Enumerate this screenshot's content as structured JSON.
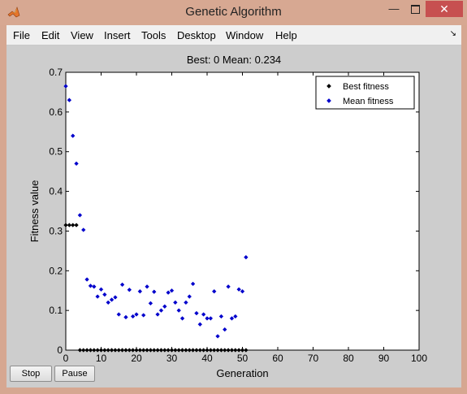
{
  "window": {
    "title": "Genetic Algorithm",
    "minimize_glyph": "—",
    "close_glyph": "✕"
  },
  "menu": {
    "items": [
      "File",
      "Edit",
      "View",
      "Insert",
      "Tools",
      "Desktop",
      "Window",
      "Help"
    ],
    "dock_glyph": "↘"
  },
  "plot": {
    "title": "Best: 0 Mean: 0.234"
  },
  "buttons": {
    "stop": "Stop",
    "pause": "Pause"
  },
  "chart_data": {
    "type": "scatter",
    "title": "Best: 0 Mean: 0.234",
    "xlabel": "Generation",
    "ylabel": "Fitness value",
    "xlim": [
      0,
      100
    ],
    "ylim": [
      0,
      0.7
    ],
    "xticks": [
      0,
      10,
      20,
      30,
      40,
      50,
      60,
      70,
      80,
      90,
      100
    ],
    "yticks": [
      0,
      0.1,
      0.2,
      0.3,
      0.4,
      0.5,
      0.6,
      0.7
    ],
    "grid": false,
    "legend_position": "top-right",
    "series": [
      {
        "name": "Best fitness",
        "color": "#000000",
        "x": [
          0,
          1,
          2,
          3,
          4,
          5,
          6,
          7,
          8,
          9,
          10,
          11,
          12,
          13,
          14,
          15,
          16,
          17,
          18,
          19,
          20,
          21,
          22,
          23,
          24,
          25,
          26,
          27,
          28,
          29,
          30,
          31,
          32,
          33,
          34,
          35,
          36,
          37,
          38,
          39,
          40,
          41,
          42,
          43,
          44,
          45,
          46,
          47,
          48,
          49,
          50,
          51
        ],
        "y": [
          0.315,
          0.315,
          0.315,
          0.315,
          0,
          0,
          0,
          0,
          0,
          0,
          0,
          0,
          0,
          0,
          0,
          0,
          0,
          0,
          0,
          0,
          0,
          0,
          0,
          0,
          0,
          0,
          0,
          0,
          0,
          0,
          0,
          0,
          0,
          0,
          0,
          0,
          0,
          0,
          0,
          0,
          0,
          0,
          0,
          0,
          0,
          0,
          0,
          0,
          0,
          0,
          0,
          0
        ]
      },
      {
        "name": "Mean fitness",
        "color": "#0000cc",
        "x": [
          0,
          1,
          2,
          3,
          4,
          5,
          6,
          7,
          8,
          9,
          10,
          11,
          12,
          13,
          14,
          15,
          16,
          17,
          18,
          19,
          20,
          21,
          22,
          23,
          24,
          25,
          26,
          27,
          28,
          29,
          30,
          31,
          32,
          33,
          34,
          35,
          36,
          37,
          38,
          39,
          40,
          41,
          42,
          43,
          44,
          45,
          46,
          47,
          48,
          49,
          50,
          51
        ],
        "y": [
          0.665,
          0.63,
          0.54,
          0.47,
          0.34,
          0.303,
          0.178,
          0.162,
          0.16,
          0.135,
          0.153,
          0.14,
          0.12,
          0.127,
          0.133,
          0.09,
          0.165,
          0.083,
          0.152,
          0.085,
          0.09,
          0.148,
          0.088,
          0.16,
          0.118,
          0.147,
          0.09,
          0.1,
          0.11,
          0.145,
          0.15,
          0.12,
          0.1,
          0.08,
          0.12,
          0.135,
          0.167,
          0.093,
          0.065,
          0.09,
          0.08,
          0.08,
          0.148,
          0.035,
          0.085,
          0.052,
          0.16,
          0.08,
          0.085,
          0.153,
          0.148,
          0.234
        ]
      }
    ]
  }
}
